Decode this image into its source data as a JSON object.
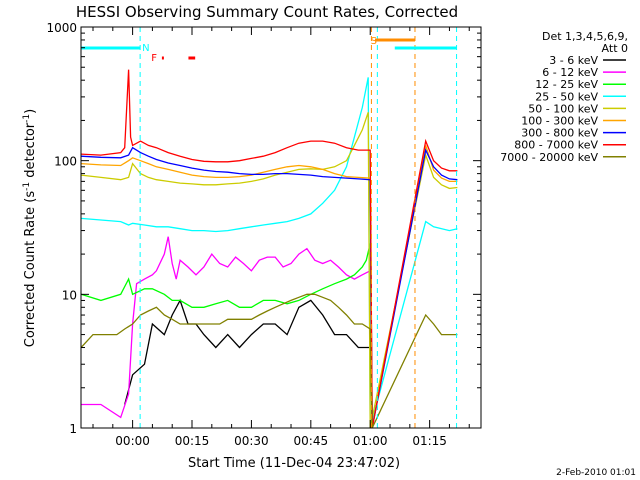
{
  "chart_data": {
    "type": "line",
    "title": "HESSI Observing Summary Count Rates, Corrected",
    "xlabel": "Start Time (11-Dec-04 23:47:02)",
    "ylabel_main": "Corrected Count Rate (s",
    "ylabel_sup1": "-1",
    "ylabel_mid": " detector",
    "ylabel_sup2": "-1",
    "ylabel_end": ")",
    "yscale": "log",
    "ylim": [
      1,
      1000
    ],
    "xlim": [
      -13.03,
      87.97
    ],
    "x_unit": "minutes after 00:00 on 12-Dec-04",
    "x_ticks": [
      {
        "value": 0,
        "label": "00:00"
      },
      {
        "value": 15,
        "label": "00:15"
      },
      {
        "value": 30,
        "label": "00:30"
      },
      {
        "value": 45,
        "label": "00:45"
      },
      {
        "value": 60,
        "label": "01:00"
      },
      {
        "value": 75,
        "label": "01:15"
      }
    ],
    "y_ticks": [
      {
        "value": 1,
        "label": "1"
      },
      {
        "value": 10,
        "label": "10"
      },
      {
        "value": 100,
        "label": "100"
      },
      {
        "value": 1000,
        "label": "1000"
      }
    ],
    "legend_header_1": "Det 1,3,4,5,6,9,",
    "legend_header_2": "Att 0",
    "legend_position": "right",
    "footer_date": "2-Feb-2010 01:01",
    "series": [
      {
        "name": "3 - 6 keV",
        "color": "#000000",
        "points": [
          [
            -2,
            1.5
          ],
          [
            0,
            2.5
          ],
          [
            3,
            3
          ],
          [
            5,
            6
          ],
          [
            8,
            5
          ],
          [
            10,
            7
          ],
          [
            12,
            9
          ],
          [
            14,
            6
          ],
          [
            16,
            6
          ],
          [
            18,
            5
          ],
          [
            21,
            4
          ],
          [
            24,
            5
          ],
          [
            27,
            4
          ],
          [
            30,
            5
          ],
          [
            33,
            6
          ],
          [
            36,
            6
          ],
          [
            39,
            5
          ],
          [
            42,
            8
          ],
          [
            45,
            9
          ],
          [
            48,
            7
          ],
          [
            51,
            5
          ],
          [
            54,
            5
          ],
          [
            57,
            4
          ],
          [
            60,
            4
          ],
          [
            60.5,
            1
          ]
        ]
      },
      {
        "name": "6 - 12 keV",
        "color": "#ff00ff",
        "points": [
          [
            -13,
            1.5
          ],
          [
            -8,
            1.5
          ],
          [
            -3,
            1.2
          ],
          [
            -1,
            1.8
          ],
          [
            0,
            6
          ],
          [
            1,
            12
          ],
          [
            3,
            13
          ],
          [
            5,
            14
          ],
          [
            6,
            15
          ],
          [
            8,
            20
          ],
          [
            9,
            27
          ],
          [
            10,
            17
          ],
          [
            11,
            13
          ],
          [
            12,
            18
          ],
          [
            14,
            16
          ],
          [
            16,
            14
          ],
          [
            18,
            16
          ],
          [
            20,
            20
          ],
          [
            22,
            17
          ],
          [
            24,
            16
          ],
          [
            26,
            19
          ],
          [
            28,
            17
          ],
          [
            30,
            15
          ],
          [
            32,
            18
          ],
          [
            34,
            19
          ],
          [
            36,
            19
          ],
          [
            38,
            16
          ],
          [
            40,
            17
          ],
          [
            42,
            20
          ],
          [
            44,
            22
          ],
          [
            46,
            18
          ],
          [
            48,
            17
          ],
          [
            50,
            18
          ],
          [
            52,
            16
          ],
          [
            54,
            14
          ],
          [
            56,
            13
          ],
          [
            58,
            14
          ],
          [
            60,
            15
          ],
          [
            60.5,
            1
          ]
        ]
      },
      {
        "name": "12 - 25 keV",
        "color": "#00ff00",
        "points": [
          [
            -13,
            10
          ],
          [
            -8,
            9
          ],
          [
            -3,
            10
          ],
          [
            -1,
            13
          ],
          [
            0,
            10
          ],
          [
            3,
            11
          ],
          [
            5,
            11
          ],
          [
            8,
            10
          ],
          [
            10,
            9
          ],
          [
            12,
            9
          ],
          [
            15,
            8
          ],
          [
            18,
            8
          ],
          [
            21,
            8.5
          ],
          [
            24,
            9
          ],
          [
            27,
            8
          ],
          [
            30,
            8
          ],
          [
            33,
            9
          ],
          [
            36,
            9
          ],
          [
            39,
            8.5
          ],
          [
            42,
            9
          ],
          [
            45,
            10
          ],
          [
            48,
            11
          ],
          [
            51,
            12
          ],
          [
            54,
            13
          ],
          [
            56,
            14
          ],
          [
            58,
            16
          ],
          [
            59,
            18
          ],
          [
            60,
            24
          ],
          [
            60.5,
            1
          ]
        ]
      },
      {
        "name": "25 - 50 keV",
        "color": "#00ffff",
        "points": [
          [
            -13,
            37
          ],
          [
            -8,
            36
          ],
          [
            -3,
            35
          ],
          [
            -1,
            33
          ],
          [
            0,
            34
          ],
          [
            3,
            33
          ],
          [
            6,
            32
          ],
          [
            9,
            32
          ],
          [
            12,
            31
          ],
          [
            15,
            30
          ],
          [
            18,
            30
          ],
          [
            21,
            29.5
          ],
          [
            24,
            30
          ],
          [
            27,
            31
          ],
          [
            30,
            32
          ],
          [
            33,
            33
          ],
          [
            36,
            34
          ],
          [
            39,
            35
          ],
          [
            42,
            37
          ],
          [
            45,
            40
          ],
          [
            48,
            48
          ],
          [
            51,
            60
          ],
          [
            54,
            90
          ],
          [
            56,
            150
          ],
          [
            58,
            250
          ],
          [
            59.5,
            420
          ],
          [
            60,
            1
          ],
          [
            74,
            35
          ],
          [
            76,
            32
          ],
          [
            80,
            30
          ],
          [
            82,
            31
          ]
        ]
      },
      {
        "name": "50 - 100 keV",
        "color": "#cccc00",
        "points": [
          [
            -13,
            78
          ],
          [
            -8,
            75
          ],
          [
            -3,
            72
          ],
          [
            -1,
            75
          ],
          [
            0,
            95
          ],
          [
            2,
            80
          ],
          [
            4,
            75
          ],
          [
            6,
            72
          ],
          [
            9,
            70
          ],
          [
            12,
            68
          ],
          [
            15,
            67
          ],
          [
            18,
            66
          ],
          [
            21,
            66
          ],
          [
            24,
            67
          ],
          [
            27,
            68
          ],
          [
            30,
            70
          ],
          [
            33,
            73
          ],
          [
            36,
            78
          ],
          [
            39,
            82
          ],
          [
            42,
            86
          ],
          [
            45,
            87
          ],
          [
            48,
            86
          ],
          [
            51,
            90
          ],
          [
            54,
            100
          ],
          [
            56,
            130
          ],
          [
            58,
            170
          ],
          [
            59.5,
            230
          ],
          [
            60,
            1
          ],
          [
            74,
            110
          ],
          [
            76,
            75
          ],
          [
            78,
            66
          ],
          [
            80,
            62
          ],
          [
            82,
            63
          ]
        ]
      },
      {
        "name": "100 - 300 keV",
        "color": "#ffa500",
        "points": [
          [
            -13,
            95
          ],
          [
            -8,
            93
          ],
          [
            -3,
            92
          ],
          [
            -1,
            100
          ],
          [
            0,
            105
          ],
          [
            2,
            100
          ],
          [
            4,
            95
          ],
          [
            6,
            90
          ],
          [
            9,
            86
          ],
          [
            12,
            82
          ],
          [
            15,
            78
          ],
          [
            18,
            76
          ],
          [
            21,
            75
          ],
          [
            24,
            75
          ],
          [
            27,
            76
          ],
          [
            30,
            78
          ],
          [
            33,
            82
          ],
          [
            36,
            86
          ],
          [
            39,
            90
          ],
          [
            42,
            92
          ],
          [
            45,
            90
          ],
          [
            48,
            86
          ],
          [
            51,
            80
          ],
          [
            54,
            76
          ],
          [
            57,
            75
          ],
          [
            60,
            74
          ],
          [
            60.5,
            1
          ],
          [
            74,
            130
          ],
          [
            76,
            85
          ],
          [
            78,
            74
          ],
          [
            80,
            70
          ],
          [
            82,
            70
          ]
        ]
      },
      {
        "name": "300 - 800 keV",
        "color": "#0000ff",
        "points": [
          [
            -13,
            108
          ],
          [
            -8,
            106
          ],
          [
            -3,
            105
          ],
          [
            -1,
            110
          ],
          [
            0,
            125
          ],
          [
            2,
            115
          ],
          [
            4,
            108
          ],
          [
            6,
            102
          ],
          [
            9,
            96
          ],
          [
            12,
            92
          ],
          [
            15,
            88
          ],
          [
            18,
            85
          ],
          [
            21,
            83
          ],
          [
            24,
            82
          ],
          [
            27,
            80
          ],
          [
            30,
            79
          ],
          [
            33,
            79
          ],
          [
            36,
            80
          ],
          [
            39,
            80
          ],
          [
            42,
            79
          ],
          [
            45,
            78
          ],
          [
            48,
            76
          ],
          [
            51,
            75
          ],
          [
            54,
            74
          ],
          [
            57,
            73
          ],
          [
            60,
            72
          ],
          [
            60.5,
            1
          ],
          [
            74,
            120
          ],
          [
            76,
            90
          ],
          [
            78,
            78
          ],
          [
            80,
            73
          ],
          [
            82,
            72
          ]
        ]
      },
      {
        "name": "800 - 7000 keV",
        "color": "#ff0000",
        "points": [
          [
            -13,
            112
          ],
          [
            -8,
            110
          ],
          [
            -3,
            115
          ],
          [
            -2,
            125
          ],
          [
            -1,
            480
          ],
          [
            -0.5,
            150
          ],
          [
            0,
            130
          ],
          [
            2,
            140
          ],
          [
            4,
            130
          ],
          [
            6,
            125
          ],
          [
            9,
            115
          ],
          [
            12,
            108
          ],
          [
            15,
            102
          ],
          [
            18,
            99
          ],
          [
            21,
            98
          ],
          [
            24,
            98
          ],
          [
            27,
            100
          ],
          [
            30,
            104
          ],
          [
            33,
            108
          ],
          [
            36,
            115
          ],
          [
            39,
            125
          ],
          [
            42,
            135
          ],
          [
            45,
            140
          ],
          [
            48,
            140
          ],
          [
            51,
            135
          ],
          [
            54,
            125
          ],
          [
            57,
            120
          ],
          [
            60,
            120
          ],
          [
            60.5,
            1
          ],
          [
            74,
            140
          ],
          [
            76,
            100
          ],
          [
            78,
            88
          ],
          [
            80,
            84
          ],
          [
            82,
            84
          ]
        ]
      },
      {
        "name": "7000 - 20000 keV",
        "color": "#808000",
        "points": [
          [
            -13,
            4
          ],
          [
            -10,
            5
          ],
          [
            -7,
            5
          ],
          [
            -4,
            5
          ],
          [
            -2,
            5.5
          ],
          [
            0,
            6
          ],
          [
            2,
            7
          ],
          [
            4,
            7.5
          ],
          [
            6,
            8
          ],
          [
            8,
            7
          ],
          [
            10,
            6.5
          ],
          [
            12,
            6
          ],
          [
            14,
            6
          ],
          [
            16,
            6
          ],
          [
            18,
            6
          ],
          [
            20,
            6
          ],
          [
            22,
            6
          ],
          [
            24,
            6.5
          ],
          [
            26,
            6.5
          ],
          [
            28,
            6.5
          ],
          [
            30,
            6.5
          ],
          [
            32,
            7
          ],
          [
            34,
            7.5
          ],
          [
            36,
            8
          ],
          [
            38,
            8.5
          ],
          [
            40,
            9
          ],
          [
            42,
            9.5
          ],
          [
            44,
            10
          ],
          [
            46,
            10
          ],
          [
            48,
            9.5
          ],
          [
            50,
            9
          ],
          [
            52,
            8
          ],
          [
            54,
            7
          ],
          [
            56,
            6
          ],
          [
            58,
            6
          ],
          [
            60,
            5.5
          ],
          [
            60.5,
            1
          ],
          [
            74,
            7
          ],
          [
            76,
            6
          ],
          [
            78,
            5
          ],
          [
            80,
            5
          ],
          [
            82,
            5
          ]
        ]
      }
    ],
    "flag_labels": [
      {
        "label": "N",
        "x": 1.9,
        "color": "#00ffff"
      },
      {
        "label": "F",
        "x": 4.2,
        "color": "#ff0000"
      },
      {
        "label": "S",
        "x": 59.6,
        "color": "#ff8c00"
      }
    ],
    "flag_bars": [
      {
        "flag": "N",
        "color": "#00ffff",
        "intervals": [
          [
            -13,
            1.9
          ],
          [
            66.2,
            81.8
          ]
        ]
      },
      {
        "flag": "S",
        "color": "#ff8c00",
        "intervals": [
          [
            61.2,
            71.3
          ]
        ]
      },
      {
        "flag": "F",
        "color": "#ff0000",
        "intervals": [
          [
            7.4,
            7.9
          ],
          [
            14.1,
            15.8
          ]
        ]
      }
    ],
    "night_lines": [
      1.9,
      61.8,
      81.8
    ],
    "saa_lines": [
      60.3,
      71.3
    ]
  }
}
